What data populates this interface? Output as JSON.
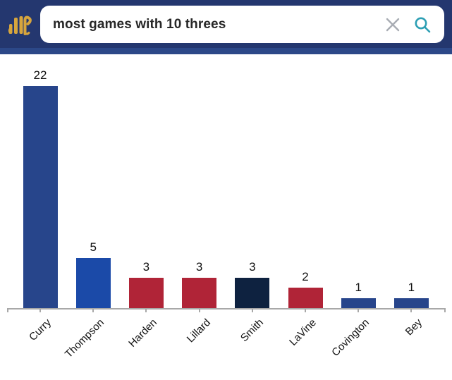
{
  "header": {
    "search_value": "most games with 10 threes",
    "colors": {
      "header_bg": "#24376f",
      "header_band": "#2c4888",
      "search_bg": "#ffffff",
      "query_text": "#272727",
      "clear_icon_gray": "#a8acb3",
      "search_icon_teal": "#2d9fb4",
      "logo_gold": "#d7a53d"
    }
  },
  "chart_data": {
    "type": "bar",
    "categories": [
      "Curry",
      "Thompson",
      "Harden",
      "Lillard",
      "Smith",
      "LaVine",
      "Covington",
      "Bey"
    ],
    "values": [
      22,
      5,
      3,
      3,
      3,
      2,
      1,
      1
    ],
    "bar_colors": [
      "#27458b",
      "#1b4aa8",
      "#b02437",
      "#b02437",
      "#0e2240",
      "#b02437",
      "#27458b",
      "#27458b"
    ],
    "title": "",
    "xlabel": "",
    "ylabel": "",
    "ylim": [
      0,
      23
    ],
    "grid": false,
    "legend": null,
    "value_labels_shown": true,
    "x_tick_rotation": -45,
    "axis_color": "#a8a8a8",
    "label_color": "#111111"
  }
}
